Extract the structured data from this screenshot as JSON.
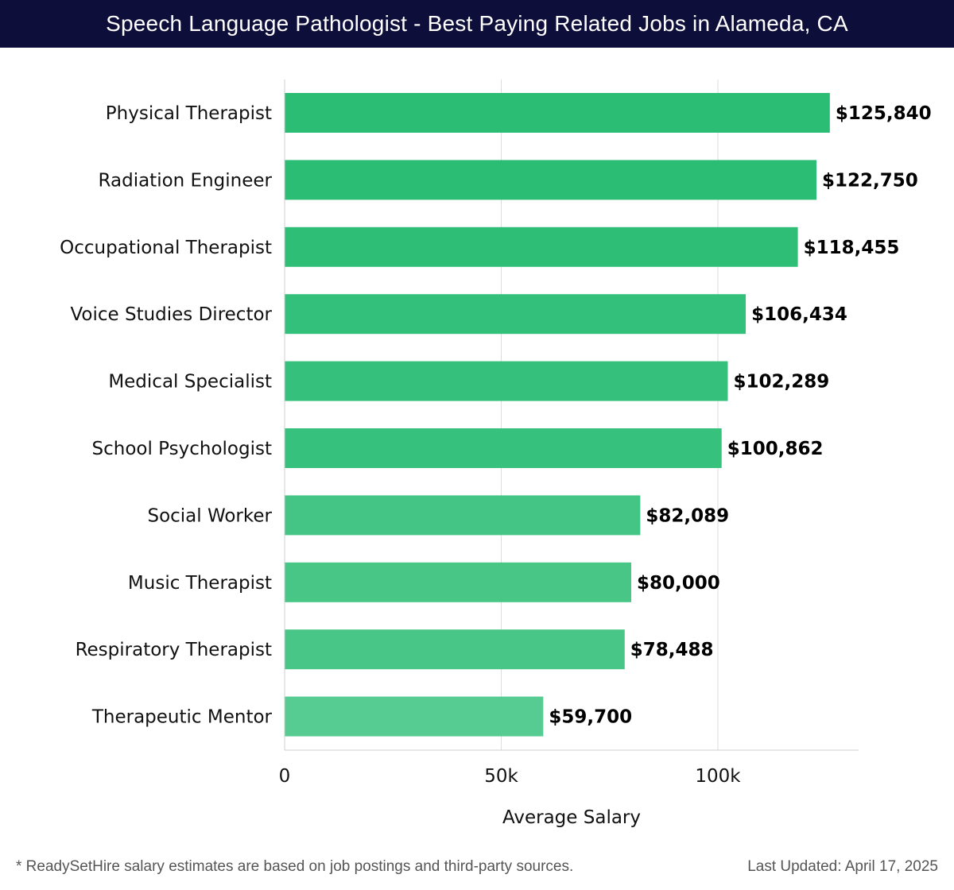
{
  "header": {
    "title": "Speech Language Pathologist - Best Paying Related Jobs in Alameda, CA"
  },
  "chart_data": {
    "type": "bar",
    "orientation": "horizontal",
    "categories": [
      "Physical Therapist",
      "Radiation Engineer",
      "Occupational Therapist",
      "Voice Studies Director",
      "Medical Specialist",
      "School Psychologist",
      "Social Worker",
      "Music Therapist",
      "Respiratory Therapist",
      "Therapeutic Mentor"
    ],
    "values": [
      125840,
      122750,
      118455,
      106434,
      102289,
      100862,
      82089,
      80000,
      78488,
      59700
    ],
    "value_labels": [
      "$125,840",
      "$122,750",
      "$118,455",
      "$106,434",
      "$102,289",
      "$100,862",
      "$82,089",
      "$80,000",
      "$78,488",
      "$59,700"
    ],
    "xlabel": "Average Salary",
    "ylabel": "",
    "xlim": [
      0,
      132000
    ],
    "xticks": [
      0,
      50000,
      100000
    ],
    "xtick_labels": [
      "0",
      "50k",
      "100k"
    ],
    "grid": true,
    "colors": [
      "#2bbd73",
      "#2cbd74",
      "#2ebe76",
      "#33c07a",
      "#35c17b",
      "#36c17c",
      "#45c585",
      "#47c686",
      "#48c687",
      "#56cb92"
    ]
  },
  "footer": {
    "note": "* ReadySetHire salary estimates are based on job postings and third-party sources.",
    "updated": "Last Updated: April 17, 2025"
  }
}
